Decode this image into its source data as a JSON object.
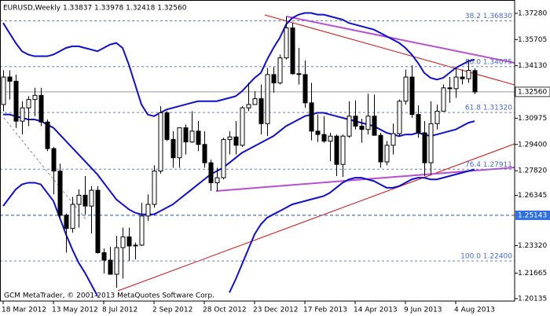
{
  "chart_data": {
    "type": "candlestick",
    "title": "EURUSD,Weekly  1.33837 1.33978 1.32418 1.32560",
    "footer": "GCM MetaTrader, © 2001-2013 MetaQuotes Software Corp.",
    "categories": [
      "18 Mar 2012",
      null,
      null,
      null,
      null,
      null,
      null,
      null,
      "13 May 2012",
      null,
      null,
      null,
      null,
      null,
      null,
      null,
      "8 Jul 2012",
      null,
      null,
      null,
      null,
      null,
      null,
      null,
      "2 Sep 2012",
      null,
      null,
      null,
      null,
      null,
      null,
      null,
      "28 Oct 2012",
      null,
      null,
      null,
      null,
      null,
      null,
      null,
      "23 Dec 2012",
      null,
      null,
      null,
      null,
      null,
      null,
      null,
      "17 Feb 2013",
      null,
      null,
      null,
      null,
      null,
      null,
      null,
      "14 Apr 2013",
      null,
      null,
      null,
      null,
      null,
      null,
      null,
      "9 Jun 2013",
      null,
      null,
      null,
      null,
      null,
      null,
      null,
      "4 Aug 2013",
      null,
      null,
      null
    ],
    "open": [
      1.318,
      1.3345,
      1.332,
      1.308,
      1.316,
      1.321,
      1.3235,
      1.3075,
      1.2915,
      1.278,
      1.2515,
      1.2435,
      1.258,
      1.2635,
      1.257,
      1.2665,
      1.229,
      1.2245,
      1.216,
      1.232,
      1.2385,
      1.233,
      1.2335,
      1.251,
      1.258,
      1.278,
      1.313,
      1.297,
      1.286,
      1.304,
      1.2955,
      1.302,
      1.294,
      1.283,
      1.271,
      1.274,
      1.297,
      1.2985,
      1.2935,
      1.316,
      1.318,
      1.3215,
      1.3065,
      1.336,
      1.331,
      1.346,
      1.364,
      1.3365,
      1.336,
      1.319,
      1.302,
      1.3,
      1.296,
      1.299,
      1.282,
      1.299,
      1.311,
      1.305,
      1.303,
      1.311,
      1.2995,
      1.2835,
      1.2935,
      1.3005,
      1.32,
      1.3345,
      1.312,
      1.301,
      1.283,
      1.3065,
      1.314,
      1.328,
      1.3275,
      1.3345,
      1.3335,
      1.33837
    ],
    "high": [
      1.3385,
      1.3385,
      1.336,
      1.32,
      1.323,
      1.328,
      1.328,
      1.309,
      1.2925,
      1.2825,
      1.2525,
      1.2625,
      1.267,
      1.275,
      1.269,
      1.269,
      1.2315,
      1.2325,
      1.239,
      1.244,
      1.244,
      1.235,
      1.259,
      1.264,
      1.2815,
      1.317,
      1.314,
      1.302,
      1.304,
      1.306,
      1.314,
      1.308,
      1.302,
      1.285,
      1.28,
      1.298,
      1.302,
      1.308,
      1.317,
      1.331,
      1.326,
      1.33,
      1.34,
      1.3405,
      1.348,
      1.371,
      1.367,
      1.352,
      1.3445,
      1.331,
      1.312,
      1.311,
      1.301,
      1.3,
      1.3,
      1.32,
      1.3205,
      1.3095,
      1.3245,
      1.324,
      1.301,
      1.296,
      1.3065,
      1.321,
      1.339,
      1.3415,
      1.3175,
      1.308,
      1.32,
      1.318,
      1.33,
      1.3345,
      1.34,
      1.339,
      1.345,
      1.33978
    ],
    "low": [
      1.314,
      1.321,
      1.304,
      1.3,
      1.305,
      1.311,
      1.305,
      1.29,
      1.264,
      1.2495,
      1.229,
      1.241,
      1.244,
      1.252,
      1.2405,
      1.2285,
      1.2165,
      1.216,
      1.208,
      1.2135,
      1.224,
      1.225,
      1.233,
      1.248,
      1.256,
      1.2765,
      1.296,
      1.28,
      1.28,
      1.288,
      1.295,
      1.29,
      1.28,
      1.266,
      1.266,
      1.273,
      1.288,
      1.288,
      1.2925,
      1.314,
      1.318,
      1.3,
      1.299,
      1.325,
      1.33,
      1.345,
      1.336,
      1.33,
      1.316,
      1.2965,
      1.2955,
      1.295,
      1.284,
      1.275,
      1.2745,
      1.298,
      1.303,
      1.295,
      1.3,
      1.2995,
      1.28,
      1.2815,
      1.288,
      1.299,
      1.318,
      1.31,
      1.298,
      1.275,
      1.2755,
      1.303,
      1.314,
      1.319,
      1.322,
      1.33,
      1.331,
      1.32418
    ],
    "close": [
      1.3345,
      1.332,
      1.308,
      1.316,
      1.321,
      1.3235,
      1.3075,
      1.2915,
      1.278,
      1.2515,
      1.2435,
      1.258,
      1.2635,
      1.257,
      1.2665,
      1.229,
      1.2245,
      1.216,
      1.232,
      1.2385,
      1.233,
      1.2335,
      1.251,
      1.258,
      1.278,
      1.313,
      1.297,
      1.286,
      1.304,
      1.2955,
      1.302,
      1.294,
      1.283,
      1.271,
      1.274,
      1.297,
      1.2985,
      1.2935,
      1.316,
      1.318,
      1.3215,
      1.3065,
      1.336,
      1.331,
      1.346,
      1.364,
      1.3365,
      1.336,
      1.319,
      1.302,
      1.3,
      1.296,
      1.299,
      1.282,
      1.299,
      1.311,
      1.305,
      1.303,
      1.311,
      1.2995,
      1.2835,
      1.2935,
      1.3005,
      1.32,
      1.3345,
      1.312,
      1.301,
      1.283,
      1.3065,
      1.314,
      1.328,
      1.3275,
      1.3345,
      1.3335,
      1.3385,
      1.3256
    ],
    "bands": [
      {
        "color": "#1010c8",
        "values": [
          1.367,
          1.361,
          1.355,
          1.35,
          1.348,
          1.347,
          1.347,
          1.347,
          1.348,
          1.35,
          1.352,
          1.353,
          1.353,
          1.352,
          1.351,
          1.35,
          1.352,
          1.354,
          1.355,
          1.352,
          1.342,
          1.33,
          1.318,
          1.312,
          1.311,
          1.313,
          1.315,
          1.316,
          1.317,
          1.318,
          1.319,
          1.32,
          1.32,
          1.32,
          1.32,
          1.321,
          1.322,
          1.323,
          1.326,
          1.33,
          1.334,
          1.337,
          1.345,
          1.352,
          1.358,
          1.366,
          1.37,
          1.372,
          1.373,
          1.373,
          1.372,
          1.372,
          1.371,
          1.37,
          1.369,
          1.367,
          1.366,
          1.365,
          1.364,
          1.363,
          1.361,
          1.359,
          1.357,
          1.355,
          1.352,
          1.348,
          1.343,
          1.337,
          1.334,
          1.333,
          1.334,
          1.337,
          1.34,
          1.342,
          1.344,
          1.345
        ]
      },
      {
        "color": "#1010c8",
        "values": [
          1.312,
          1.312,
          1.311,
          1.31,
          1.309,
          1.309,
          1.308,
          1.306,
          1.304,
          1.3,
          1.296,
          1.292,
          1.288,
          1.284,
          1.28,
          1.276,
          1.271,
          1.266,
          1.261,
          1.258,
          1.255,
          1.253,
          1.252,
          1.252,
          1.252,
          1.254,
          1.256,
          1.258,
          1.261,
          1.264,
          1.267,
          1.27,
          1.273,
          1.276,
          1.278,
          1.28,
          1.283,
          1.286,
          1.289,
          1.291,
          1.293,
          1.295,
          1.297,
          1.299,
          1.302,
          1.305,
          1.307,
          1.309,
          1.311,
          1.312,
          1.313,
          1.313,
          1.312,
          1.311,
          1.31,
          1.309,
          1.308,
          1.307,
          1.306,
          1.305,
          1.303,
          1.301,
          1.3,
          1.299,
          1.3,
          1.3,
          1.301,
          1.3,
          1.299,
          1.3,
          1.301,
          1.302,
          1.303,
          1.305,
          1.307,
          1.308
        ]
      },
      {
        "color": "#1010c8",
        "values": [
          1.257,
          1.262,
          1.267,
          1.27,
          1.271,
          1.271,
          1.27,
          1.265,
          1.26,
          1.25,
          1.24,
          1.231,
          1.223,
          1.217,
          1.21,
          1.203,
          null,
          null,
          null,
          null,
          null,
          null,
          null,
          null,
          null,
          null,
          null,
          null,
          null,
          null,
          null,
          null,
          null,
          null,
          null,
          null,
          1.205,
          1.213,
          1.222,
          1.231,
          1.24,
          1.246,
          1.25,
          1.252,
          1.254,
          1.256,
          1.258,
          1.259,
          1.26,
          1.261,
          1.262,
          1.263,
          1.265,
          1.268,
          1.271,
          1.273,
          1.274,
          1.274,
          1.273,
          1.272,
          1.27,
          1.268,
          1.268,
          1.269,
          1.271,
          1.273,
          1.274,
          1.274,
          1.273,
          1.273,
          1.274,
          1.275,
          1.276,
          1.277,
          1.278,
          1.279
        ]
      }
    ],
    "fibo": [
      {
        "value": 1.3683,
        "label": "38.2 1.36830"
      },
      {
        "value": 1.34075,
        "label": "50.0 1.34075"
      },
      {
        "value": 1.3132,
        "label": "61.8 1.31320"
      },
      {
        "value": 1.27911,
        "label": "76.4 1.27911"
      },
      {
        "value": 1.224,
        "label": "100.0 1.22400"
      }
    ],
    "price_line": {
      "value": 1.3256,
      "label": "1.32560"
    },
    "level_line": 1.25143,
    "ylim": [
      1.1999,
      1.3808
    ],
    "yticks": [
      {
        "value": 1.3728,
        "label": "1.37280"
      },
      1.35705,
      {
        "value": 1.3413,
        "label": "1.34130"
      },
      1.30975,
      {
        "value": 1.294,
        "label": "1.29400"
      },
      {
        "value": 1.2782,
        "label": "1.27820"
      },
      1.26345,
      {
        "value": 1.2332,
        "label": "1.23320"
      },
      1.21665,
      1.20135
    ],
    "bull_color": "#ffffff",
    "bear_color": "#000000"
  }
}
